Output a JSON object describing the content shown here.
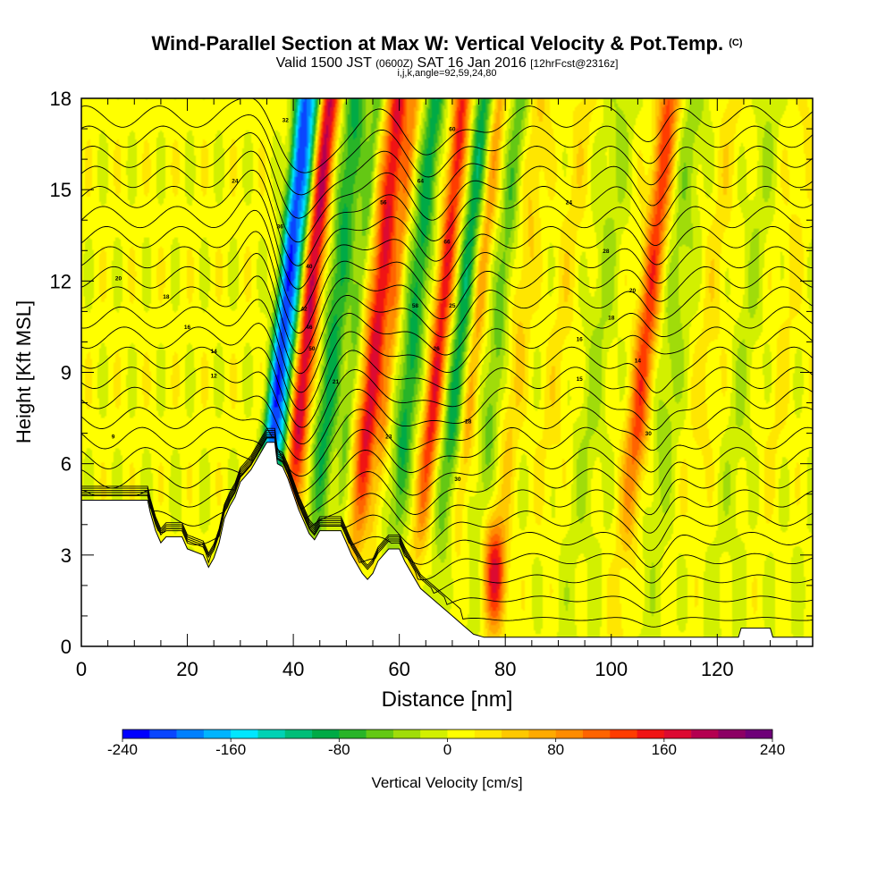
{
  "header": {
    "title_main": "Wind-Parallel Section at Max W: Vertical Velocity & Pot.Temp.",
    "title_copyright": "(C)",
    "subtitle_valid": "Valid 1500 JST",
    "subtitle_utc": "(0600Z)",
    "subtitle_date": "SAT 16 Jan 2016",
    "subtitle_fcst": "[12hrFcst@2316z]",
    "subtitle_params": "i,j,k,angle=92,59,24,80"
  },
  "chart_data": {
    "type": "heatmap",
    "xlabel": "Distance [nm]",
    "ylabel": "Height [Kft MSL]",
    "xlim": [
      0,
      138
    ],
    "ylim": [
      0,
      18
    ],
    "x_ticks": [
      0,
      20,
      40,
      60,
      80,
      100,
      120
    ],
    "y_ticks": [
      0,
      3,
      6,
      9,
      12,
      15,
      18
    ],
    "colorbar": {
      "label": "Vertical Velocity [cm/s]",
      "min": -240,
      "max": 240,
      "step": 20,
      "tick_labels": [
        "-240",
        "-160",
        "-80",
        "0",
        "80",
        "160",
        "240"
      ],
      "colors": [
        "#0000ff",
        "#0a46ff",
        "#0080ff",
        "#00b4ff",
        "#00e6ff",
        "#00d2b4",
        "#00be78",
        "#00aa46",
        "#28b428",
        "#64c814",
        "#a0dc0a",
        "#d2f000",
        "#ffff00",
        "#ffe600",
        "#ffc800",
        "#ffaa00",
        "#ff8c00",
        "#ff6400",
        "#ff3c00",
        "#f01414",
        "#dc0a32",
        "#b40050",
        "#8c0064",
        "#6e0078"
      ]
    },
    "velocity_features": [
      {
        "x": 37,
        "width": 1.6,
        "w": -190
      },
      {
        "x": 39,
        "width": 1.5,
        "w": -120
      },
      {
        "x": 42,
        "width": 1.8,
        "w": 175
      },
      {
        "x": 47,
        "width": 2.2,
        "w": -95
      },
      {
        "x": 51,
        "width": 1.2,
        "w": -55
      },
      {
        "x": 55,
        "width": 2.0,
        "w": 160
      },
      {
        "x": 58,
        "width": 1.1,
        "w": 60
      },
      {
        "x": 62,
        "width": 1.8,
        "w": -100
      },
      {
        "x": 67,
        "width": 1.6,
        "w": 140
      },
      {
        "x": 71,
        "width": 1.6,
        "w": -95
      },
      {
        "x": 74,
        "width": 1.2,
        "w": 60
      },
      {
        "x": 78,
        "width": 1.6,
        "w": -60
      },
      {
        "x": 82,
        "width": 1.8,
        "w": 35
      },
      {
        "x": 90,
        "width": 2.5,
        "w": 20
      },
      {
        "x": 97,
        "width": 3.0,
        "w": -30
      },
      {
        "x": 106,
        "width": 2.0,
        "w": 120
      },
      {
        "x": 111,
        "width": 2.5,
        "w": -40
      },
      {
        "x": 118,
        "width": 2.2,
        "w": 20
      },
      {
        "x": 125,
        "width": 2.5,
        "w": -25
      },
      {
        "x": 132,
        "width": 2.0,
        "w": 15
      }
    ],
    "lowlevel_updraft": {
      "x": 78,
      "y": 2.4,
      "w": 150
    },
    "terrain": [
      [
        0,
        4.8
      ],
      [
        12.5,
        4.8
      ],
      [
        13,
        4.4
      ],
      [
        14,
        3.8
      ],
      [
        15,
        3.4
      ],
      [
        16,
        3.6
      ],
      [
        19,
        3.6
      ],
      [
        20,
        3.2
      ],
      [
        23,
        3.0
      ],
      [
        24,
        2.6
      ],
      [
        25,
        2.9
      ],
      [
        26,
        3.4
      ],
      [
        27,
        4.2
      ],
      [
        28,
        4.6
      ],
      [
        29,
        4.9
      ],
      [
        30,
        5.4
      ],
      [
        32,
        5.8
      ],
      [
        34,
        6.4
      ],
      [
        35,
        6.7
      ],
      [
        36.5,
        6.7
      ],
      [
        37,
        6.0
      ],
      [
        38,
        5.9
      ],
      [
        39,
        5.5
      ],
      [
        40,
        5.0
      ],
      [
        41,
        4.5
      ],
      [
        42,
        4.1
      ],
      [
        43,
        3.7
      ],
      [
        44,
        3.5
      ],
      [
        45,
        3.8
      ],
      [
        49,
        3.8
      ],
      [
        50,
        3.4
      ],
      [
        51,
        3.0
      ],
      [
        52,
        2.7
      ],
      [
        53,
        2.4
      ],
      [
        54,
        2.2
      ],
      [
        55,
        2.4
      ],
      [
        56,
        2.8
      ],
      [
        58,
        3.2
      ],
      [
        60,
        3.2
      ],
      [
        61,
        2.8
      ],
      [
        62,
        2.5
      ],
      [
        63,
        2.2
      ],
      [
        64,
        1.9
      ],
      [
        66,
        1.6
      ],
      [
        68,
        1.3
      ],
      [
        70,
        1.0
      ],
      [
        72,
        0.7
      ],
      [
        74,
        0.4
      ],
      [
        76,
        0.3
      ],
      [
        124,
        0.3
      ],
      [
        124.5,
        0.6
      ],
      [
        130,
        0.6
      ],
      [
        130.5,
        0.3
      ],
      [
        138,
        0.3
      ]
    ],
    "theta_contour_labels": [
      "9",
      "12",
      "14",
      "15",
      "16",
      "18",
      "20",
      "21",
      "23",
      "24",
      "25",
      "26",
      "28",
      "30",
      "32",
      "36",
      "40",
      "42",
      "46",
      "50",
      "56",
      "58",
      "60",
      "64",
      "66"
    ],
    "theta_label_positions": [
      {
        "text": "9",
        "x": 6,
        "y": 6.9
      },
      {
        "text": "12",
        "x": 25,
        "y": 8.9
      },
      {
        "text": "14",
        "x": 25,
        "y": 9.7
      },
      {
        "text": "16",
        "x": 20,
        "y": 10.5
      },
      {
        "text": "18",
        "x": 16,
        "y": 11.5
      },
      {
        "text": "20",
        "x": 7,
        "y": 12.1
      },
      {
        "text": "24",
        "x": 29,
        "y": 15.3
      },
      {
        "text": "32",
        "x": 38.5,
        "y": 17.3
      },
      {
        "text": "36",
        "x": 37.5,
        "y": 13.8
      },
      {
        "text": "40",
        "x": 43,
        "y": 12.5
      },
      {
        "text": "42",
        "x": 42,
        "y": 11.1
      },
      {
        "text": "46",
        "x": 43,
        "y": 10.5
      },
      {
        "text": "50",
        "x": 43.5,
        "y": 9.8
      },
      {
        "text": "21",
        "x": 48,
        "y": 8.7
      },
      {
        "text": "56",
        "x": 57,
        "y": 14.6
      },
      {
        "text": "58",
        "x": 63,
        "y": 11.2
      },
      {
        "text": "60",
        "x": 70,
        "y": 17.0
      },
      {
        "text": "64",
        "x": 64,
        "y": 15.3
      },
      {
        "text": "66",
        "x": 69,
        "y": 13.3
      },
      {
        "text": "25",
        "x": 70,
        "y": 11.2
      },
      {
        "text": "26",
        "x": 67,
        "y": 9.8
      },
      {
        "text": "23",
        "x": 58,
        "y": 6.9
      },
      {
        "text": "28",
        "x": 73,
        "y": 7.4
      },
      {
        "text": "30",
        "x": 71,
        "y": 5.5
      },
      {
        "text": "24",
        "x": 92,
        "y": 14.6
      },
      {
        "text": "28",
        "x": 99,
        "y": 13.0
      },
      {
        "text": "20",
        "x": 104,
        "y": 11.7
      },
      {
        "text": "18",
        "x": 100,
        "y": 10.8
      },
      {
        "text": "16",
        "x": 94,
        "y": 10.1
      },
      {
        "text": "14",
        "x": 105,
        "y": 9.4
      },
      {
        "text": "15",
        "x": 94,
        "y": 8.8
      },
      {
        "text": "30",
        "x": 107,
        "y": 7.0
      }
    ]
  }
}
